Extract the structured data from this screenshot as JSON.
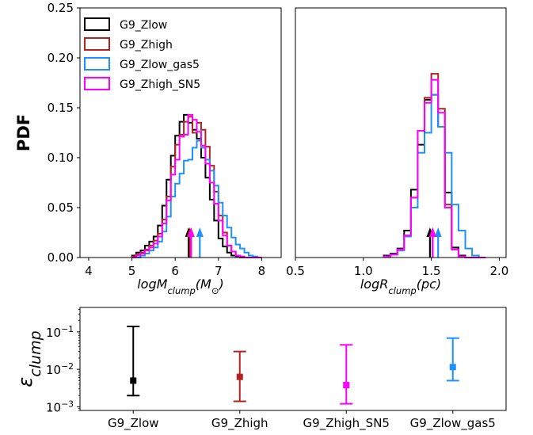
{
  "chart_data": [
    {
      "type": "step-histogram",
      "ylabel": "PDF",
      "xlabel": {
        "base": "logM",
        "sub": "clump",
        "unit": "(M",
        "unit_end": ")"
      },
      "xlim": [
        3.8,
        8.45
      ],
      "ylim": [
        0,
        0.25
      ],
      "xticks": [
        4,
        5,
        6,
        7,
        8
      ],
      "xtick_labels": [
        "4",
        "5",
        "6",
        "7",
        "8"
      ],
      "yticks": [
        0,
        0.05,
        0.1,
        0.15,
        0.2,
        0.25
      ],
      "ytick_labels": [
        "0.00",
        "0.05",
        "0.10",
        "0.15",
        "0.20",
        "0.25"
      ],
      "bin_edges": [
        5.0,
        5.1,
        5.2,
        5.3,
        5.4,
        5.5,
        5.6,
        5.7,
        5.8,
        5.9,
        6.0,
        6.1,
        6.2,
        6.3,
        6.4,
        6.5,
        6.6,
        6.7,
        6.8,
        6.9,
        7.0,
        7.1,
        7.2,
        7.3,
        7.4,
        7.5,
        7.6,
        7.7,
        7.8,
        7.9,
        8.0
      ],
      "series": [
        {
          "name": "G9_Zlow",
          "color": "#000000",
          "values": [
            0.002,
            0.005,
            0.007,
            0.012,
            0.016,
            0.021,
            0.032,
            0.052,
            0.078,
            0.102,
            0.122,
            0.136,
            0.143,
            0.135,
            0.128,
            0.119,
            0.1,
            0.08,
            0.058,
            0.037,
            0.019,
            0.011,
            0.005,
            0.002,
            0.001,
            0,
            0,
            0,
            0,
            0
          ],
          "median_arrow": 6.31
        },
        {
          "name": "G9_Zhigh",
          "color": "#b22222",
          "values": [
            0.001,
            0.003,
            0.005,
            0.008,
            0.012,
            0.017,
            0.024,
            0.038,
            0.061,
            0.091,
            0.113,
            0.123,
            0.136,
            0.141,
            0.125,
            0.135,
            0.128,
            0.111,
            0.092,
            0.066,
            0.042,
            0.025,
            0.012,
            0.006,
            0.002,
            0.001,
            0,
            0,
            0,
            0
          ],
          "median_arrow": 6.34
        },
        {
          "name": "G9_Zlow_gas5",
          "color": "#1e90ff",
          "values": [
            0,
            0,
            0.002,
            0.004,
            0.007,
            0.01,
            0.016,
            0.026,
            0.041,
            0.061,
            0.074,
            0.084,
            0.097,
            0.098,
            0.11,
            0.117,
            0.11,
            0.098,
            0.087,
            0.072,
            0.055,
            0.042,
            0.03,
            0.02,
            0.013,
            0.009,
            0.005,
            0.002,
            0.001,
            0
          ],
          "median_arrow": 6.57
        },
        {
          "name": "G9_Zhigh_SN5",
          "color": "#ff00ff",
          "values": [
            0,
            0.002,
            0.004,
            0.007,
            0.01,
            0.014,
            0.021,
            0.034,
            0.057,
            0.083,
            0.098,
            0.121,
            0.123,
            0.143,
            0.138,
            0.126,
            0.112,
            0.094,
            0.075,
            0.054,
            0.037,
            0.022,
            0.012,
            0.006,
            0.002,
            0.001,
            0,
            0,
            0,
            0
          ],
          "median_arrow": 6.37
        }
      ]
    },
    {
      "type": "step-histogram",
      "xlabel": {
        "base": "logR",
        "sub": "clump",
        "unit": "(pc)"
      },
      "xlim": [
        0.5,
        2.05
      ],
      "ylim": [
        0,
        0.25
      ],
      "xticks": [
        0.5,
        1.0,
        1.5,
        2.0
      ],
      "xtick_labels": [
        "0.5",
        "1.0",
        "1.5",
        "2.0"
      ],
      "bin_edges": [
        1.15,
        1.2,
        1.25,
        1.3,
        1.35,
        1.4,
        1.45,
        1.5,
        1.55,
        1.6,
        1.65,
        1.7,
        1.75,
        1.8,
        1.85,
        1.9
      ],
      "series": [
        {
          "name": "G9_Zlow",
          "color": "#000000",
          "values": [
            0.002,
            0.004,
            0.009,
            0.027,
            0.068,
            0.113,
            0.158,
            0.163,
            0.131,
            0.065,
            0.01,
            0.002,
            0,
            0,
            0
          ],
          "median_arrow": 1.49
        },
        {
          "name": "G9_Zhigh",
          "color": "#b22222",
          "values": [
            0.001,
            0.003,
            0.008,
            0.022,
            0.06,
            0.127,
            0.16,
            0.184,
            0.149,
            0.053,
            0.008,
            0.001,
            0,
            0,
            0
          ],
          "median_arrow": 1.51
        },
        {
          "name": "G9_Zlow_gas5",
          "color": "#1e90ff",
          "values": [
            0.001,
            0.003,
            0.007,
            0.021,
            0.05,
            0.105,
            0.125,
            0.163,
            0.131,
            0.105,
            0.053,
            0.027,
            0.009,
            0.002,
            0
          ],
          "median_arrow": 1.55
        },
        {
          "name": "G9_Zhigh_SN5",
          "color": "#ff00ff",
          "values": [
            0.001,
            0.003,
            0.008,
            0.022,
            0.06,
            0.127,
            0.155,
            0.178,
            0.145,
            0.05,
            0.008,
            0.001,
            0,
            0,
            0
          ],
          "median_arrow": 1.51
        }
      ]
    },
    {
      "type": "errorbar",
      "ylabel": {
        "base": "ε",
        "sub": "clump"
      },
      "yscale": "log",
      "ylim": [
        0.0008,
        0.45
      ],
      "yticks": [
        0.001,
        0.01,
        0.1
      ],
      "ytick_labels": [
        {
          "base": "10",
          "exp": "−3"
        },
        {
          "base": "10",
          "exp": "−2"
        },
        {
          "base": "10",
          "exp": "−1"
        }
      ],
      "categories": [
        "G9_Zlow",
        "G9_Zhigh",
        "G9_Zhigh_SN5",
        "G9_Zlow_gas5"
      ],
      "colors": [
        "#000000",
        "#b22222",
        "#ff00ff",
        "#1e90ff"
      ],
      "values": [
        0.005,
        0.0063,
        0.0038,
        0.0115
      ],
      "lower": [
        0.002,
        0.0014,
        0.0012,
        0.005
      ],
      "upper": [
        0.14,
        0.03,
        0.045,
        0.068
      ]
    }
  ],
  "legend": {
    "position": "top-left",
    "items": [
      "G9_Zlow",
      "G9_Zhigh",
      "G9_Zlow_gas5",
      "G9_Zhigh_SN5"
    ],
    "colors": [
      "#000000",
      "#b22222",
      "#1e90ff",
      "#ff00ff"
    ]
  }
}
